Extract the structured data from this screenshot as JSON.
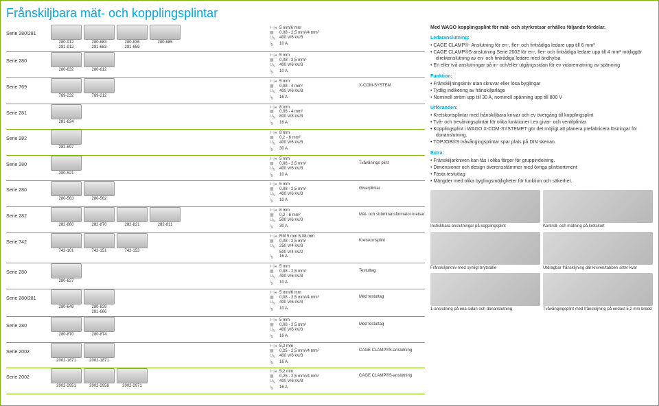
{
  "title": "Frånskiljbara mät- och kopplingsplintar",
  "rows": [
    {
      "serie": "Serie 280/281",
      "products": [
        {
          "n": "280-912\n281-912"
        },
        {
          "n": "280-683\n281-683"
        },
        {
          "n": "280-836\n281-659"
        },
        {
          "n": "280-685"
        }
      ],
      "specs": {
        "pitch": "5 mm/6 mm",
        "cross": "0,08 - 2,5 mm²/4 mm²",
        "volt": "400 V/6 kV/3",
        "cur": "10 A"
      },
      "extra": ""
    },
    {
      "serie": "Serie 280",
      "products": [
        {
          "n": "280-632"
        },
        {
          "n": "280-612"
        }
      ],
      "specs": {
        "pitch": "5 mm",
        "cross": "0,08 - 2,5 mm²",
        "volt": "400 V/6 kV/3",
        "cur": "10 A"
      },
      "extra": ""
    },
    {
      "serie": "Serie 769",
      "products": [
        {
          "n": "769-232"
        },
        {
          "n": "769-212"
        }
      ],
      "specs": {
        "pitch": "5 mm",
        "cross": "0,08 - 4 mm²",
        "volt": "400 V/6 kV/3",
        "cur": "16 A"
      },
      "extra": "X-COM-SYSTEM"
    },
    {
      "serie": "Serie 281",
      "products": [
        {
          "n": "281-624"
        }
      ],
      "specs": {
        "pitch": "8 mm",
        "cross": "0,08 - 4 mm²",
        "volt": "800 V/8 kV/3",
        "cur": "16 A"
      },
      "extra": ""
    },
    {
      "serie": "Serie 282",
      "products": [
        {
          "n": "282-697"
        }
      ],
      "specs": {
        "pitch": "8 mm",
        "cross": "0,2 - 6 mm²",
        "volt": "400 V/6 kV/3",
        "cur": "30 A"
      },
      "extra": ""
    },
    {
      "serie": "Serie 280",
      "products": [
        {
          "n": "280-521"
        }
      ],
      "specs": {
        "pitch": "5 mm",
        "cross": "0,08 - 2,5 mm²",
        "volt": "400 V/6 kV/3",
        "cur": "10 A"
      },
      "extra": "Tvåvånings plint"
    },
    {
      "serie": "Serie 280",
      "products": [
        {
          "n": "280-563"
        },
        {
          "n": "280-562"
        }
      ],
      "specs": {
        "pitch": "5 mm",
        "cross": "0,08 - 2,5 mm²",
        "volt": "400 V/6 kV/3",
        "cur": "10 A"
      },
      "extra": "Givarplintar"
    },
    {
      "serie": "Serie 282",
      "products": [
        {
          "n": "282-860"
        },
        {
          "n": "282-870"
        },
        {
          "n": "282-821"
        },
        {
          "n": "282-811"
        }
      ],
      "specs": {
        "pitch": "8 mm",
        "cross": "0,2 - 6 mm²",
        "volt": "500 V/6 kV/3",
        "cur": "30 A"
      },
      "extra": "Mät- och strömtransformator kretsar"
    },
    {
      "serie": "Serie 742",
      "products": [
        {
          "n": "742-101"
        },
        {
          "n": "742-151"
        },
        {
          "n": "742-153"
        }
      ],
      "specs": {
        "pitch": "RM 5 mm 5,08 mm",
        "cross": "0,08 - 2,5 mm²",
        "volt": "250 V/4 kV/3\n500 V/4 kV/2",
        "cur": "16 A"
      },
      "extra": "Kretskortsplint"
    },
    {
      "serie": "Serie 280",
      "products": [
        {
          "n": "280-627"
        }
      ],
      "specs": {
        "pitch": "5 mm",
        "cross": "0,08 - 2,5 mm²",
        "volt": "400 V/6 kV/3",
        "cur": "10 A"
      },
      "extra": "Testuttag"
    },
    {
      "serie": "Serie 280/281",
      "products": [
        {
          "n": "280-649"
        },
        {
          "n": "280-829\n281-666"
        }
      ],
      "specs": {
        "pitch": "5 mm/6 mm",
        "cross": "0,08 - 2,5 mm²/4 mm²",
        "volt": "400 V/6 kV/3",
        "cur": "10 A"
      },
      "extra": "Med testuttag"
    },
    {
      "serie": "Serie 280",
      "products": [
        {
          "n": "280-870"
        },
        {
          "n": "280-874"
        }
      ],
      "specs": {
        "pitch": "5 mm",
        "cross": "0,08 - 2,5 mm²",
        "volt": "400 V/6 kV/3",
        "cur": "16 A"
      },
      "extra": "Med testuttag"
    },
    {
      "serie": "Serie 2002",
      "products": [
        {
          "n": "2002-1671"
        },
        {
          "n": "2002-1871"
        }
      ],
      "specs": {
        "pitch": "5,2 mm",
        "cross": "0,25 - 2,5 mm²/4 mm²",
        "volt": "400 V/6 kV/3",
        "cur": "16 A"
      },
      "extra": "CAGE CLAMP®S-anslutning"
    },
    {
      "serie": "Serie 2002",
      "products": [
        {
          "n": "2002-2951"
        },
        {
          "n": "2002-2958"
        },
        {
          "n": "2002-2971"
        }
      ],
      "specs": {
        "pitch": "5,2 mm",
        "cross": "0,25 - 2,5 mm²/4 mm²",
        "volt": "400 V/6 kV/3",
        "cur": "16 A"
      },
      "extra": "CAGE CLAMP®S-anslutning"
    }
  ],
  "sidebar": {
    "intro": "Med WAGO kopplingsplint för mät- och styrkretsar erhålles följande fördelar.",
    "sections": [
      {
        "head": "Ledaranslutning:",
        "items": [
          "CAGE CLAMP®- Anslutning för en-, fler- och fintrådiga ledare upp till 6 mm²",
          "CAGE CLAMP®S-anslutning Serie 2002 för en-, fler- och fintrådiga ledare upp till 4 mm² möjliggör direktanslutning av en- och fintrådiga ledare med ändhylsa",
          "En eller två anslutningar på in- och/eller utgångssidan för ev vidarematning av spänning"
        ]
      },
      {
        "head": "Funktion:",
        "items": [
          "Frånskiljningskniv utan skruvar eller lösa byglingar",
          "Tydlig indikering av frånskiljarläge",
          "Nominell ström upp till 30 A, nominell spänning upp till 800 V"
        ]
      },
      {
        "head": "Utföranden:",
        "items": [
          "Kretskortsplintar med frånskiljbara knivar och ev övergång till kopplingsplint",
          "Två- och trevåningsplintar för olika funktioner t.ex givar- och ventilplintar",
          "Kopplingsplint i WAGO X-COM-SYSTEMET gör det möjligt att planera prefabricera lösningar för donanslutning.",
          "TOPJOB®S tvåvångingsplintar spar plats på DIN skenan."
        ]
      },
      {
        "head": "Extra:",
        "items": [
          "Frånskiljarkniven kan fås i olika färger för gruppindelning.",
          "Dimensioner och design överensstämmer med övriga plintsortiment",
          "Fasta testuttag",
          "Mängder med olika byglingsmöjligheter för funktion och säkerhet."
        ]
      }
    ],
    "photos": [
      {
        "cap": "Instickbara anslutningar på kopplingsplint"
      },
      {
        "cap": "Kontroll- och mätning på kretskort"
      },
      {
        "cap": "Frånskiljarkniv med synligt brytställe"
      },
      {
        "cap": "Utdragbar frånskiljning där kniven/tabben sitter kvar"
      },
      {
        "cap": "1-anslutning på ena sidan och donanslutning"
      },
      {
        "cap": "Tvåvångingsplint med frånskiljning på endast 5,2 mm bredd"
      }
    ]
  }
}
